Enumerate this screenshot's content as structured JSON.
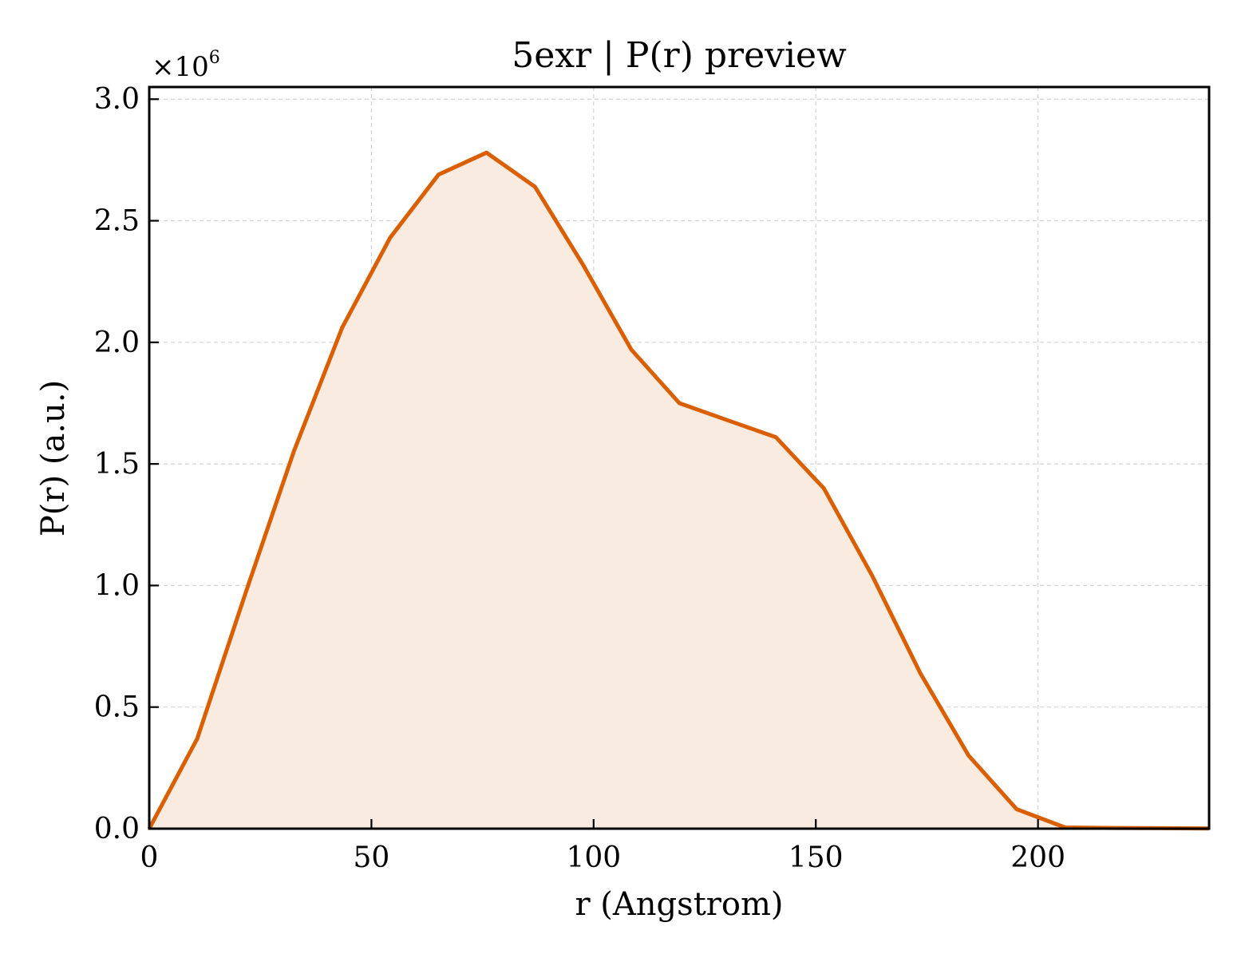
{
  "chart_data": {
    "type": "area",
    "title": "5exr | P(r) preview",
    "xlabel": "r (Angstrom)",
    "ylabel": "P(r) (a.u.)",
    "y_scale_label": {
      "base": "×10",
      "exponent": "6"
    },
    "xlim": [
      0,
      238.5
    ],
    "ylim": [
      0,
      3.05
    ],
    "xticks": [
      0,
      50,
      100,
      150,
      200
    ],
    "xtick_labels": [
      "0",
      "50",
      "100",
      "150",
      "200"
    ],
    "yticks": [
      0,
      0.5,
      1.0,
      1.5,
      2.0,
      2.5,
      3.0
    ],
    "ytick_labels": [
      "0.0",
      "0.5",
      "1.0",
      "1.5",
      "2.0",
      "2.5",
      "3.0"
    ],
    "grid": true,
    "legend": "none",
    "line_color": "#d95f02",
    "fill_color": "#f9ebe0",
    "series": [
      {
        "x": [
          0,
          10.8,
          21.7,
          32.5,
          43.4,
          54.2,
          65.1,
          75.9,
          86.8,
          97.6,
          108.5,
          119.3,
          130.1,
          141.0,
          151.8,
          162.7,
          173.5,
          184.4,
          195.2,
          206.1,
          216.9,
          227.7,
          238.5
        ],
        "y": [
          0.0,
          0.37,
          0.97,
          1.55,
          2.06,
          2.43,
          2.69,
          2.78,
          2.64,
          2.32,
          1.97,
          1.75,
          1.68,
          1.61,
          1.4,
          1.04,
          0.64,
          0.3,
          0.08,
          0.005,
          0.003,
          0.002,
          0.001
        ]
      }
    ]
  }
}
